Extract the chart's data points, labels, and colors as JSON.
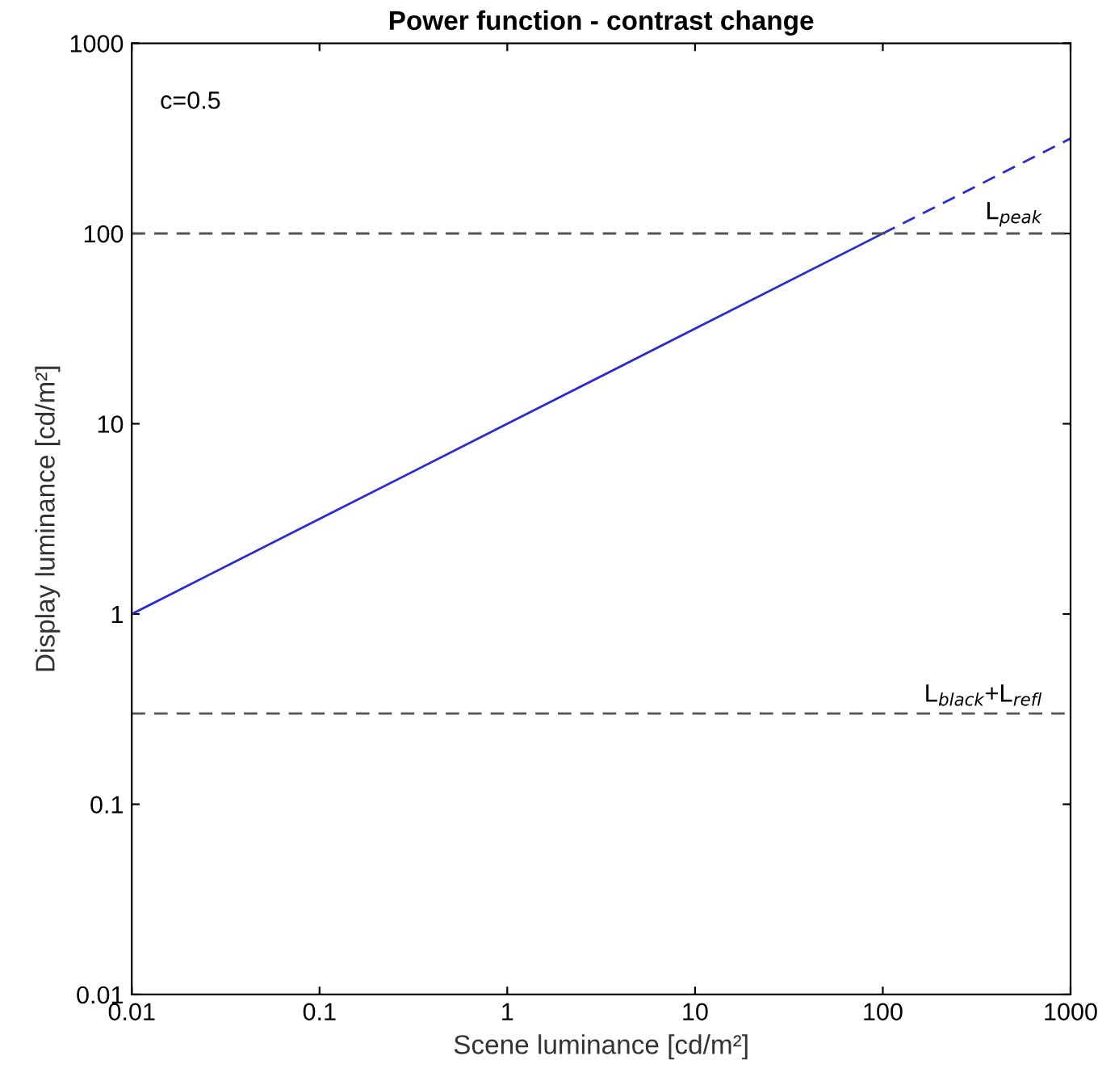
{
  "chart_data": {
    "type": "line",
    "title": "Power function - contrast change",
    "xlabel": "Scene luminance [cd/m²]",
    "ylabel": "Display luminance [cd/m²]",
    "log": "xy",
    "xlim": [
      0.01,
      1000
    ],
    "ylim": [
      0.01,
      1000
    ],
    "xticks": [
      0.01,
      0.1,
      1,
      10,
      100,
      1000
    ],
    "yticks": [
      0.01,
      0.1,
      1,
      10,
      100,
      1000
    ],
    "grid": false,
    "marker": "none",
    "series": [
      {
        "color": "#2b2bd4",
        "line_style": "solid",
        "x": [
          0.01,
          0.1,
          1,
          10,
          100
        ],
        "values": [
          1,
          3.16,
          10,
          31.6,
          100
        ]
      },
      {
        "color": "#2b2bd4",
        "line_style": "dashed",
        "x": [
          100,
          300,
          1000
        ],
        "values": [
          100,
          173,
          316
        ]
      }
    ],
    "ref_lines": [
      {
        "axis": "y",
        "value": 100,
        "label": "L$_{peak}$",
        "color": "#555555",
        "line_style": "dashed"
      },
      {
        "axis": "y",
        "value": 0.3,
        "label": "L$_{black}$+L$_{refl}$",
        "color": "#555555",
        "line_style": "dashed"
      }
    ],
    "annotations": [
      "c=0.5"
    ]
  }
}
